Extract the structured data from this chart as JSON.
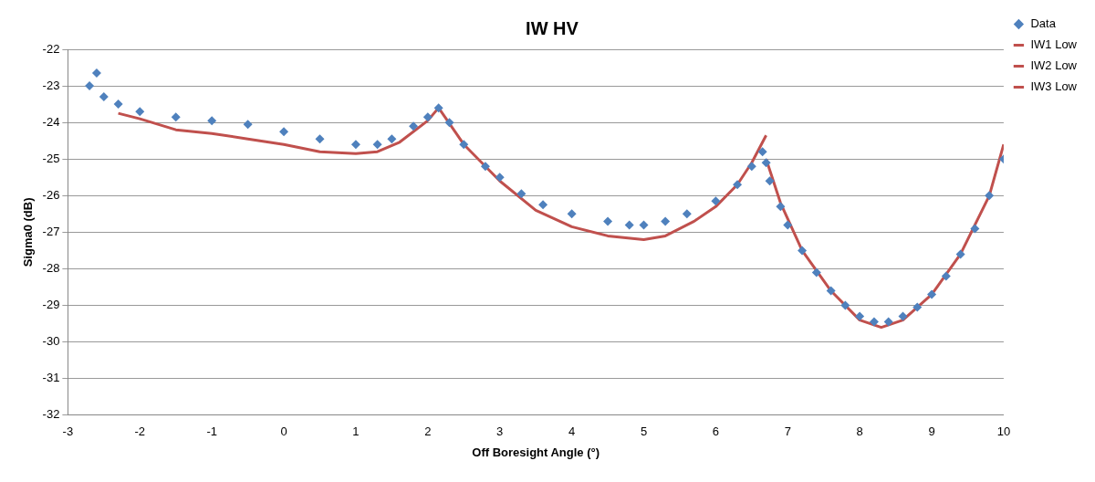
{
  "chart_data": {
    "type": "scatter",
    "title": "IW HV",
    "xlabel": "Off Boresight Angle (°)",
    "ylabel": "Sigma0 (dB)",
    "xlim": [
      -3,
      10
    ],
    "xticks": [
      -3,
      -2,
      -1,
      0,
      1,
      2,
      3,
      4,
      5,
      6,
      7,
      8,
      9,
      10
    ],
    "ylim": [
      -32,
      -22
    ],
    "yticks": [
      -32,
      -31,
      -30,
      -29,
      -28,
      -27,
      -26,
      -25,
      -24,
      -23,
      -22
    ],
    "grid": "y",
    "legend": "top right",
    "series": [
      {
        "name": "Data",
        "type": "scatter",
        "marker": "diamond",
        "color": "#4f81bd",
        "x": [
          -2.7,
          -2.6,
          -2.5,
          -2.3,
          -2,
          -1.5,
          -1,
          -0.5,
          0,
          0.5,
          1,
          1.3,
          1.5,
          1.8,
          2,
          2.15,
          2.3,
          2.5,
          2.8,
          3,
          3.3,
          3.6,
          4,
          4.5,
          4.8,
          5,
          5.3,
          5.6,
          6,
          6.3,
          6.5,
          6.65,
          6.7,
          6.75,
          6.9,
          7,
          7.2,
          7.4,
          7.6,
          7.8,
          8,
          8.2,
          8.4,
          8.6,
          8.8,
          9,
          9.2,
          9.4,
          9.6,
          9.8,
          10
        ],
        "values": [
          -23.0,
          -22.65,
          -23.3,
          -23.5,
          -23.7,
          -23.85,
          -23.95,
          -24.05,
          -24.25,
          -24.45,
          -24.6,
          -24.6,
          -24.45,
          -24.1,
          -23.85,
          -23.6,
          -24.0,
          -24.6,
          -25.2,
          -25.5,
          -25.95,
          -26.25,
          -26.5,
          -26.7,
          -26.8,
          -26.8,
          -26.7,
          -26.5,
          -26.15,
          -25.7,
          -25.2,
          -24.8,
          -25.1,
          -25.6,
          -26.3,
          -26.8,
          -27.5,
          -28.1,
          -28.6,
          -29.0,
          -29.3,
          -29.45,
          -29.45,
          -29.3,
          -29.05,
          -28.7,
          -28.2,
          -27.6,
          -26.9,
          -26.0,
          -25.0
        ]
      },
      {
        "name": "IW1 Low",
        "type": "line",
        "marker": "none",
        "color": "#c0504d",
        "x": [
          -2.3,
          -2,
          -1.5,
          -1,
          -0.5,
          0,
          0.5,
          1,
          1.3,
          1.6,
          2,
          2.15
        ],
        "values": [
          -23.75,
          -23.9,
          -24.2,
          -24.3,
          -24.45,
          -24.6,
          -24.8,
          -24.85,
          -24.8,
          -24.55,
          -23.95,
          -23.6
        ]
      },
      {
        "name": "IW2 Low",
        "type": "line",
        "marker": "none",
        "color": "#c0504d",
        "x": [
          2.15,
          2.5,
          3,
          3.5,
          4,
          4.5,
          5,
          5.3,
          5.7,
          6,
          6.3,
          6.5,
          6.7
        ],
        "values": [
          -23.6,
          -24.6,
          -25.6,
          -26.4,
          -26.85,
          -27.1,
          -27.2,
          -27.1,
          -26.7,
          -26.3,
          -25.7,
          -25.1,
          -24.35
        ]
      },
      {
        "name": "IW3 Low",
        "type": "line",
        "marker": "none",
        "color": "#c0504d",
        "x": [
          6.7,
          6.9,
          7.2,
          7.6,
          8,
          8.3,
          8.6,
          9,
          9.4,
          9.8,
          10
        ],
        "values": [
          -25.0,
          -26.2,
          -27.5,
          -28.6,
          -29.4,
          -29.6,
          -29.4,
          -28.7,
          -27.6,
          -26.0,
          -24.6
        ]
      }
    ]
  }
}
